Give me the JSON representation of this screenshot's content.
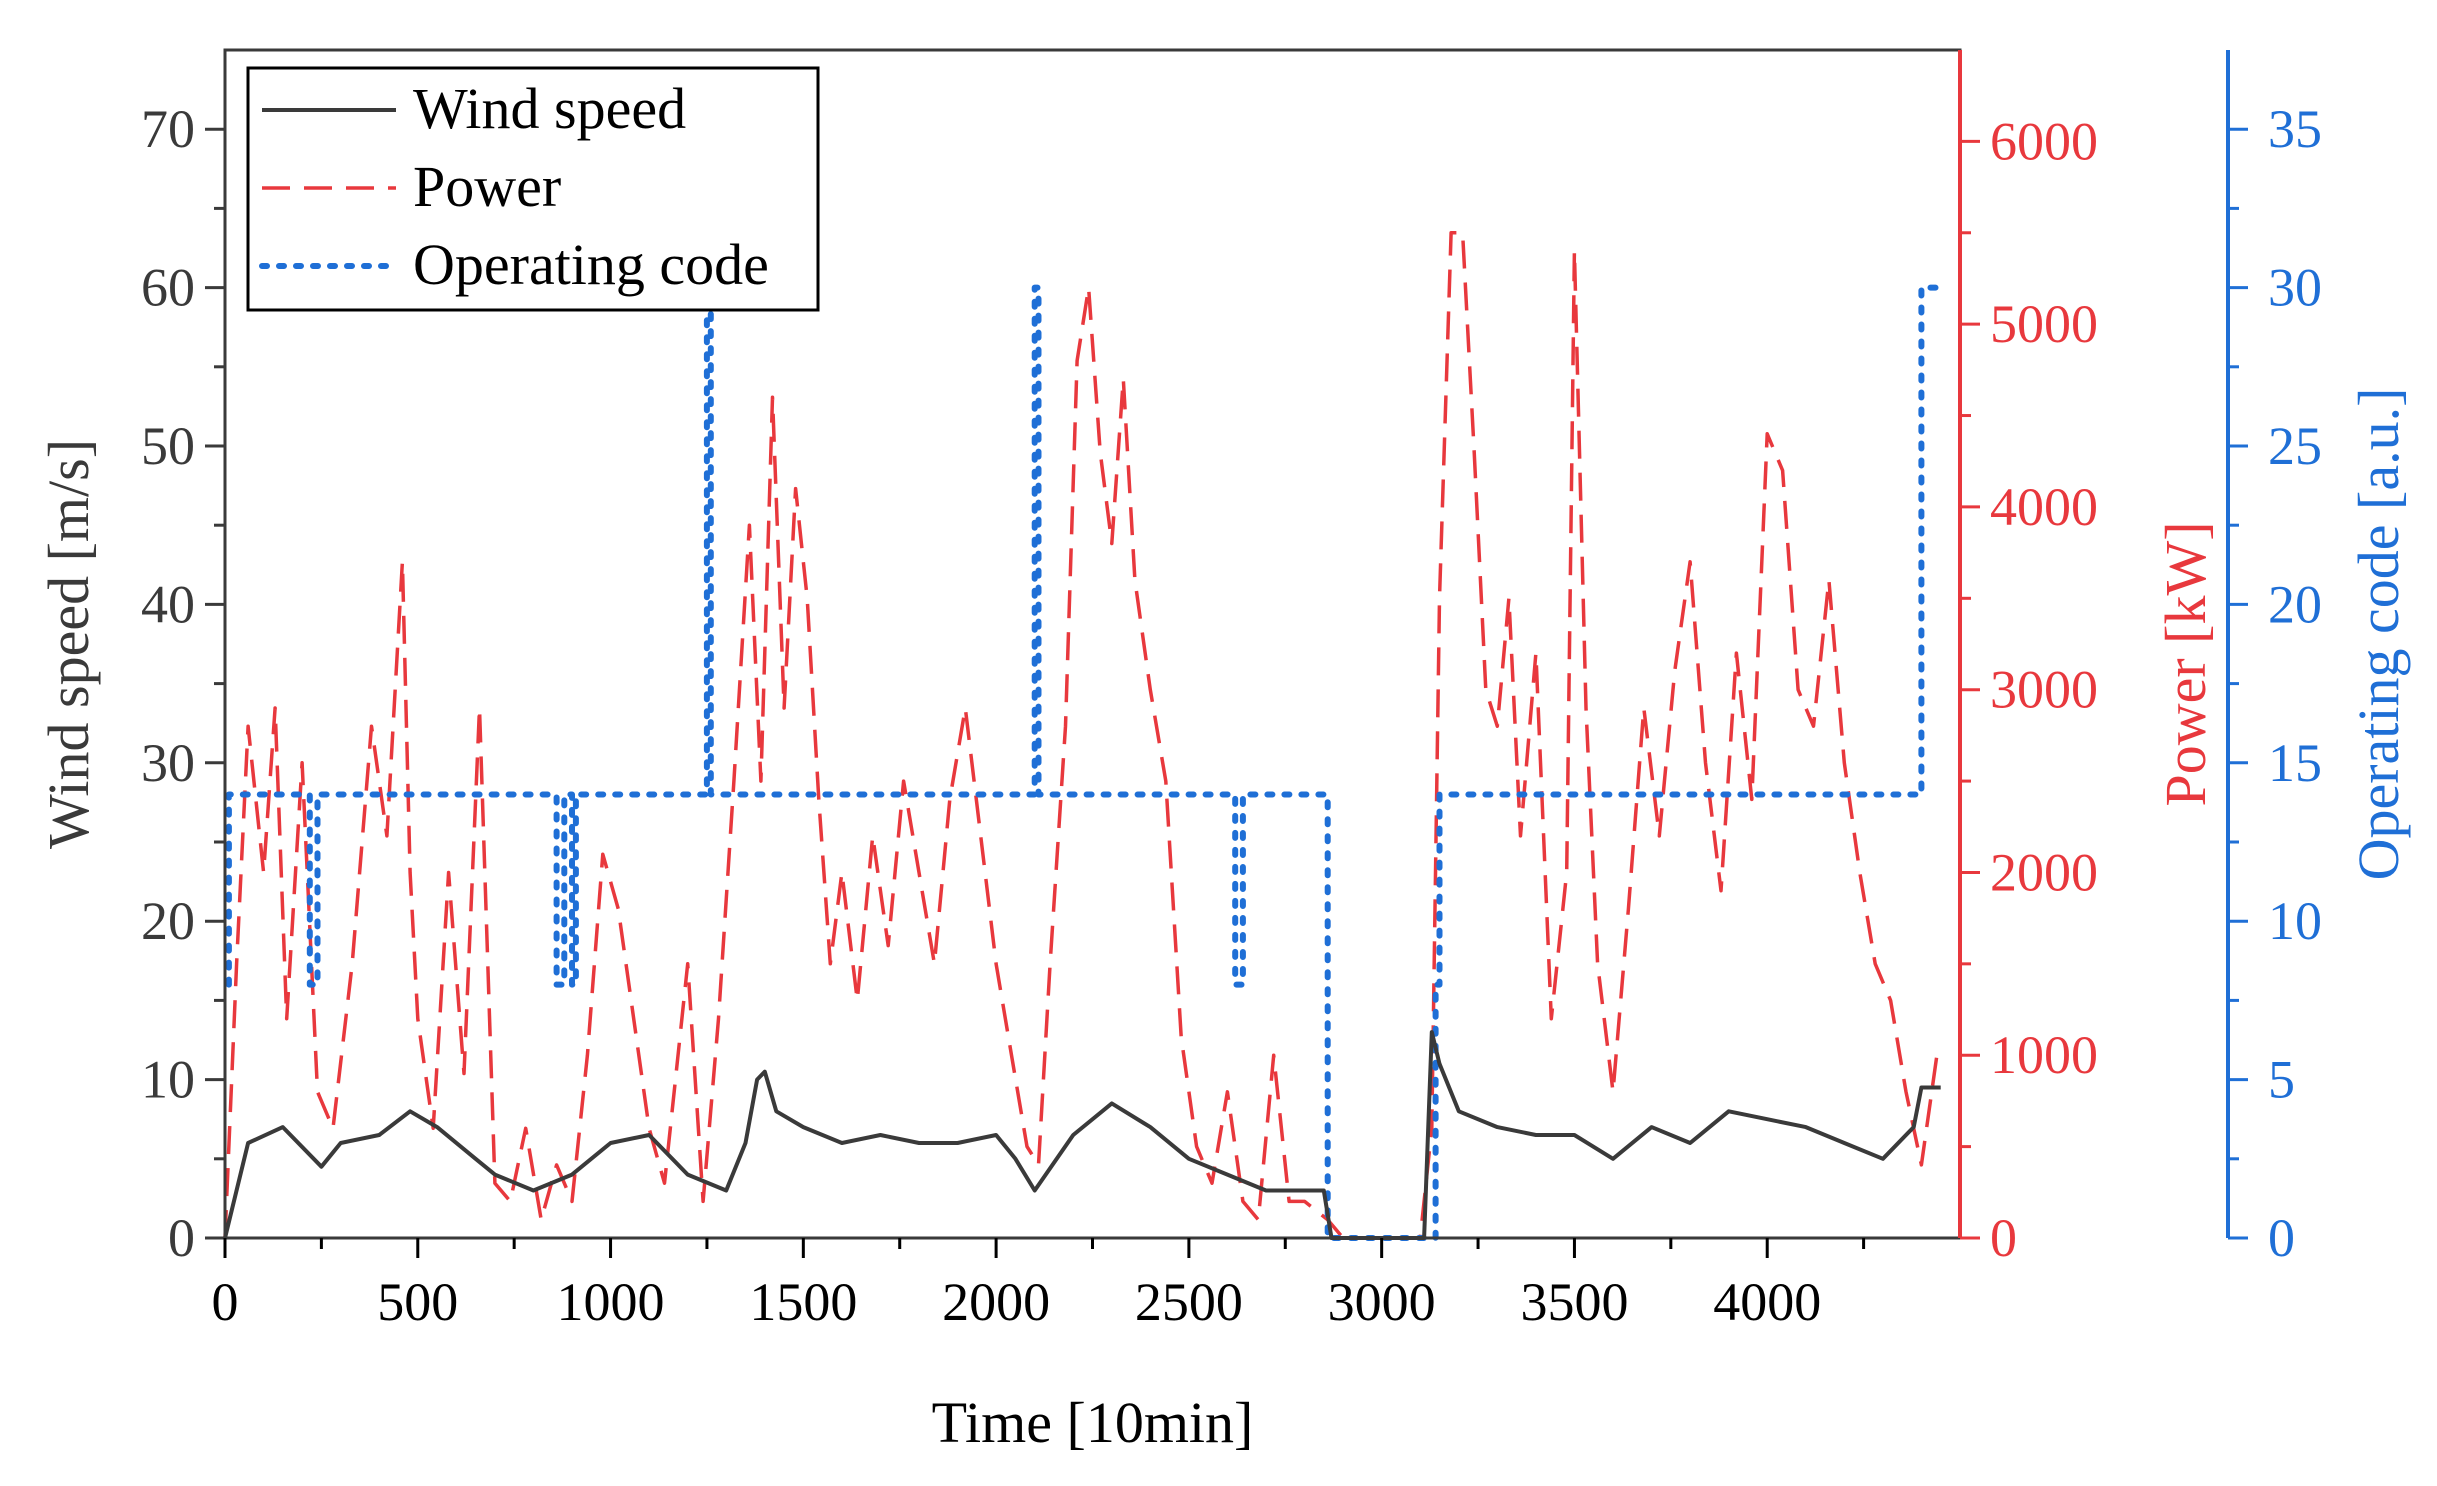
{
  "chart_data": {
    "type": "line",
    "title": "",
    "xlabel": "Time [10min]",
    "ylabel_left": "Wind speed [m/s]",
    "ylabel_right1": "Power [kW]",
    "ylabel_right2": "Operating code [a.u.]",
    "xlim": [
      0,
      4500
    ],
    "ylim_left": [
      0,
      75
    ],
    "ylim_right1": [
      0,
      6500
    ],
    "ylim_right2": [
      0,
      37.5
    ],
    "x_ticks": [
      0,
      500,
      1000,
      1500,
      2000,
      2500,
      3000,
      3500,
      4000
    ],
    "y_ticks_left": [
      0,
      10,
      20,
      30,
      40,
      50,
      60,
      70
    ],
    "y_ticks_right1": [
      0,
      1000,
      2000,
      3000,
      4000,
      5000,
      6000
    ],
    "y_ticks_right2": [
      0,
      5,
      10,
      15,
      20,
      25,
      30,
      35
    ],
    "colors": {
      "wind": "#3a3a3a",
      "power": "#e8383d",
      "code": "#1f6fd6",
      "axis_left": "#3a3a3a"
    },
    "legend": {
      "position": "top-left",
      "entries": [
        {
          "name": "Wind speed",
          "color": "#3a3a3a",
          "style": "solid"
        },
        {
          "name": "Power",
          "color": "#e8383d",
          "style": "dashed"
        },
        {
          "name": "Operating code",
          "color": "#1f6fd6",
          "style": "dotted"
        }
      ]
    },
    "series": [
      {
        "name": "Wind speed",
        "axis": "left",
        "style": "solid",
        "x": [
          0,
          60,
          150,
          250,
          300,
          400,
          480,
          550,
          650,
          700,
          800,
          900,
          1000,
          1100,
          1200,
          1300,
          1350,
          1380,
          1400,
          1430,
          1500,
          1600,
          1700,
          1800,
          1900,
          2000,
          2050,
          2100,
          2200,
          2300,
          2400,
          2500,
          2600,
          2700,
          2720,
          2850,
          2870,
          3000,
          3110,
          3130,
          3150,
          3200,
          3300,
          3400,
          3500,
          3600,
          3700,
          3800,
          3900,
          4000,
          4100,
          4200,
          4300,
          4380,
          4400,
          4450
        ],
        "y": [
          0,
          6,
          7,
          4.5,
          6,
          6.5,
          8,
          7,
          5,
          4,
          3,
          4,
          6,
          6.5,
          4,
          3,
          6,
          10,
          10.5,
          8,
          7,
          6,
          6.5,
          6,
          6,
          6.5,
          5,
          3,
          6.5,
          8.5,
          7,
          5,
          4,
          3,
          3,
          3,
          0,
          0,
          0,
          13,
          11,
          8,
          7,
          6.5,
          6.5,
          5,
          7,
          6,
          8,
          7.5,
          7,
          6,
          5,
          7,
          9.5,
          9.5
        ]
      },
      {
        "name": "Power",
        "axis": "right1",
        "style": "dashed",
        "x": [
          0,
          30,
          60,
          100,
          130,
          160,
          200,
          240,
          280,
          330,
          380,
          420,
          460,
          480,
          500,
          540,
          580,
          620,
          660,
          700,
          740,
          780,
          820,
          860,
          900,
          940,
          980,
          1020,
          1060,
          1100,
          1140,
          1200,
          1240,
          1280,
          1320,
          1360,
          1390,
          1420,
          1450,
          1480,
          1510,
          1540,
          1570,
          1600,
          1640,
          1680,
          1720,
          1760,
          1800,
          1840,
          1880,
          1920,
          1960,
          2000,
          2040,
          2080,
          2110,
          2140,
          2180,
          2210,
          2240,
          2270,
          2300,
          2330,
          2360,
          2400,
          2440,
          2480,
          2520,
          2560,
          2600,
          2640,
          2680,
          2720,
          2760,
          2800,
          2860,
          2900,
          3000,
          3100,
          3130,
          3150,
          3180,
          3210,
          3240,
          3270,
          3300,
          3330,
          3360,
          3400,
          3440,
          3480,
          3500,
          3530,
          3560,
          3600,
          3640,
          3680,
          3720,
          3760,
          3800,
          3840,
          3880,
          3920,
          3960,
          4000,
          4040,
          4080,
          4120,
          4160,
          4200,
          4240,
          4280,
          4320,
          4360,
          4400,
          4440
        ],
        "y": [
          0,
          1500,
          2800,
          2000,
          2900,
          1200,
          2600,
          800,
          600,
          1500,
          2800,
          2200,
          3700,
          2000,
          1200,
          600,
          2000,
          900,
          2900,
          300,
          200,
          600,
          100,
          400,
          200,
          1000,
          2100,
          1800,
          1200,
          600,
          300,
          1500,
          200,
          1200,
          2500,
          3900,
          2500,
          4600,
          2900,
          4100,
          3500,
          2400,
          1500,
          2000,
          1300,
          2200,
          1600,
          2500,
          2000,
          1500,
          2400,
          2900,
          2200,
          1500,
          1000,
          500,
          400,
          1500,
          2800,
          4800,
          5200,
          4300,
          3800,
          4700,
          3600,
          3000,
          2500,
          1100,
          500,
          300,
          800,
          200,
          100,
          1000,
          200,
          200,
          100,
          0,
          0,
          0,
          600,
          3500,
          5500,
          5500,
          4300,
          3000,
          2800,
          3500,
          2200,
          3200,
          1200,
          2000,
          5400,
          2900,
          1500,
          800,
          1800,
          2900,
          2200,
          3100,
          3700,
          2600,
          1900,
          3200,
          2400,
          4400,
          4200,
          3000,
          2800,
          3600,
          2600,
          2000,
          1500,
          1300,
          800,
          400,
          1000
        ]
      },
      {
        "name": "Operating code",
        "axis": "right2",
        "style": "dotted",
        "x": [
          10,
          10,
          20,
          20,
          220,
          220,
          240,
          240,
          250,
          250,
          860,
          860,
          880,
          880,
          900,
          900,
          910,
          910,
          1250,
          1250,
          1260,
          1260,
          2100,
          2100,
          2110,
          2110,
          2620,
          2620,
          2640,
          2640,
          2860,
          2860,
          3120,
          3120,
          3140,
          3140,
          3150,
          3150,
          4180,
          4180,
          4380,
          4380,
          4400,
          4400,
          4450
        ],
        "y": [
          8,
          14,
          14,
          14,
          14,
          8,
          8,
          14,
          14,
          14,
          14,
          8,
          8,
          14,
          14,
          8,
          8,
          14,
          14,
          30,
          30,
          14,
          14,
          30,
          30,
          14,
          14,
          8,
          8,
          14,
          14,
          0,
          0,
          0,
          0,
          8,
          8,
          14,
          14,
          14,
          14,
          14,
          14,
          30,
          30
        ]
      }
    ]
  }
}
